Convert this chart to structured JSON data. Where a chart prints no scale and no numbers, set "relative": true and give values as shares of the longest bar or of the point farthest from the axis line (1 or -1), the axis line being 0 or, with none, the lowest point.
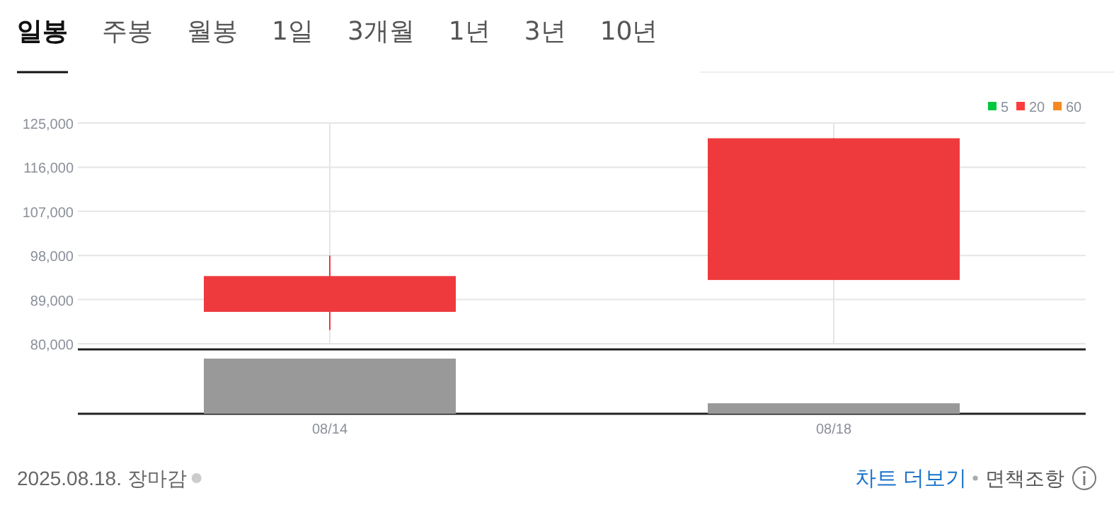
{
  "chart_data": [
    {
      "type": "candlestick",
      "categories": [
        null,
        null
      ],
      "ohlc": [
        [
          86500,
          98000,
          82800,
          93800
        ],
        [
          93000,
          121900,
          93000,
          121900
        ]
      ],
      "color": "#ee3a3d",
      "series": [
        {
          "name": "5",
          "type": "line",
          "color": "#00c73c",
          "values": [
            null,
            null
          ]
        },
        {
          "name": "20",
          "type": "line",
          "color": "#ff3b3b",
          "values": [
            null,
            null
          ]
        },
        {
          "name": "60",
          "type": "line",
          "color": "#f7891f",
          "values": [
            null,
            null
          ]
        }
      ],
      "ylim": [
        80000,
        125000
      ],
      "yticks": [
        {
          "value": 80000,
          "label": "80,000"
        },
        {
          "value": 89000,
          "label": "89,000"
        },
        {
          "value": 98000,
          "label": "98,000"
        },
        {
          "value": 107000,
          "label": "107,000"
        },
        {
          "value": 116000,
          "label": "116,000"
        },
        {
          "value": 125000,
          "label": "125,000"
        }
      ],
      "grid": true,
      "legend": "top right",
      "tick_labels": "y",
      "annotations": [
        "일봉",
        "주봉",
        "월봉",
        "1일",
        "3개월",
        "1년",
        "3년",
        "10년"
      ]
    },
    {
      "type": "bar",
      "categories": [
        "08/14",
        "08/18"
      ],
      "values": [
        1,
        0.19
      ],
      "color": "#999999",
      "relative": true,
      "tick_labels": "x",
      "annotations": [
        "2025.08.18. 장마감",
        "차트 더보기",
        "면책조항"
      ]
    }
  ]
}
